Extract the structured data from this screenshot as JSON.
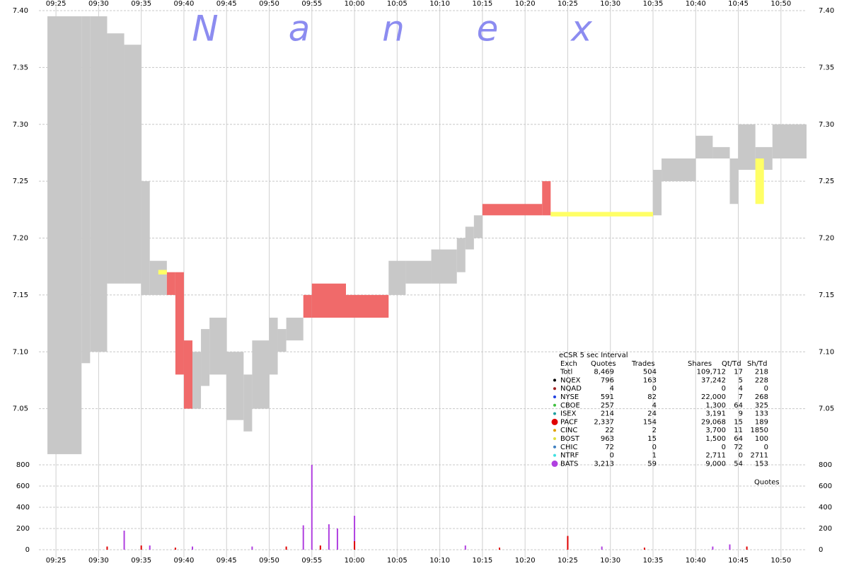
{
  "watermark": [
    "N",
    "a",
    "n",
    "e",
    "x"
  ],
  "chart_data": [
    {
      "type": "range",
      "xlim": [
        "09:23",
        "10:53"
      ],
      "xticks": [
        "09:25",
        "09:30",
        "09:35",
        "09:40",
        "09:45",
        "09:50",
        "09:55",
        "10:00",
        "10:05",
        "10:10",
        "10:15",
        "10:20",
        "10:25",
        "10:30",
        "10:35",
        "10:40",
        "10:45",
        "10:50"
      ],
      "ylim": [
        7.0,
        7.4
      ],
      "yticks": [
        {
          "value": 7.05,
          "label": "7.05"
        },
        {
          "value": 7.1,
          "label": "7.10"
        },
        {
          "value": 7.15,
          "label": "7.15"
        },
        {
          "value": 7.2,
          "label": "7.20"
        },
        {
          "value": 7.25,
          "label": "7.25"
        },
        {
          "value": 7.3,
          "label": "7.30"
        },
        {
          "value": 7.35,
          "label": "7.35"
        },
        {
          "value": 7.4,
          "label": "7.40"
        }
      ],
      "grid": true,
      "series": [
        {
          "color": "#c8c8c8",
          "start": [
            "09:24",
            "09:28",
            "09:29",
            "09:31",
            "09:33",
            "09:35",
            "09:36",
            "09:41",
            "09:42",
            "09:43",
            "09:45",
            "09:47",
            "09:48",
            "09:50",
            "09:51",
            "09:52",
            "10:04",
            "10:06",
            "10:09",
            "10:12",
            "10:13",
            "10:14",
            "10:35",
            "10:36",
            "10:40",
            "10:42",
            "10:44",
            "10:45",
            "10:47",
            "10:49"
          ],
          "end": [
            "09:28",
            "09:29",
            "09:31",
            "09:33",
            "09:35",
            "09:36",
            "09:38",
            "09:42",
            "09:43",
            "09:45",
            "09:47",
            "09:48",
            "09:50",
            "09:51",
            "09:52",
            "09:54",
            "10:06",
            "10:09",
            "10:12",
            "10:13",
            "10:14",
            "10:15",
            "10:36",
            "10:40",
            "10:42",
            "10:44",
            "10:45",
            "10:47",
            "10:49",
            "10:53"
          ],
          "low": [
            7.01,
            7.09,
            7.1,
            7.16,
            7.16,
            7.15,
            7.15,
            7.05,
            7.07,
            7.08,
            7.04,
            7.03,
            7.05,
            7.08,
            7.1,
            7.11,
            7.15,
            7.16,
            7.16,
            7.17,
            7.19,
            7.2,
            7.22,
            7.25,
            7.27,
            7.27,
            7.23,
            7.26,
            7.26,
            7.27
          ],
          "high": [
            7.395,
            7.395,
            7.395,
            7.38,
            7.37,
            7.25,
            7.18,
            7.1,
            7.12,
            7.13,
            7.1,
            7.08,
            7.11,
            7.13,
            7.12,
            7.13,
            7.18,
            7.18,
            7.19,
            7.2,
            7.21,
            7.22,
            7.26,
            7.27,
            7.29,
            7.28,
            7.27,
            7.3,
            7.28,
            7.3
          ]
        },
        {
          "color": "#f06a6a",
          "start": [
            "09:38",
            "09:39",
            "09:40",
            "09:54",
            "09:55",
            "09:59",
            "10:15",
            "10:22"
          ],
          "end": [
            "09:39",
            "09:40",
            "09:41",
            "09:55",
            "09:59",
            "10:04",
            "10:22",
            "10:23"
          ],
          "low": [
            7.15,
            7.08,
            7.05,
            7.13,
            7.13,
            7.13,
            7.22,
            7.22
          ],
          "high": [
            7.17,
            7.17,
            7.11,
            7.15,
            7.16,
            7.15,
            7.23,
            7.25
          ]
        },
        {
          "color": "#ffff66",
          "start": [
            "09:37",
            "10:23",
            "10:47"
          ],
          "end": [
            "09:38",
            "10:35",
            "10:48"
          ],
          "low": [
            7.168,
            7.219,
            7.23
          ],
          "high": [
            7.172,
            7.223,
            7.27
          ]
        }
      ],
      "table": {
        "title": "eCSR 5 sec Interval",
        "columns": [
          "Exch",
          "Quotes",
          "Trades",
          "Shares",
          "Qt/Td",
          "Sh/Td"
        ],
        "rows": [
          {
            "color": null,
            "cells": [
              "Totl",
              "8,469",
              "504",
              "109,712",
              "17",
              "218"
            ]
          },
          {
            "color": "#000000",
            "cells": [
              "NQEX",
              "796",
              "163",
              "37,242",
              "5",
              "228"
            ]
          },
          {
            "color": "#a02020",
            "cells": [
              "NQAD",
              "4",
              "0",
              "0",
              "4",
              "0"
            ]
          },
          {
            "color": "#2040e0",
            "cells": [
              "NYSE",
              "591",
              "82",
              "22,000",
              "7",
              "268"
            ]
          },
          {
            "color": "#40c040",
            "cells": [
              "CBOE",
              "257",
              "4",
              "1,300",
              "64",
              "325"
            ]
          },
          {
            "color": "#20a0a0",
            "cells": [
              "ISEX",
              "214",
              "24",
              "3,191",
              "9",
              "133"
            ]
          },
          {
            "color": "#e00000",
            "cells": [
              "PACF",
              "2,337",
              "154",
              "29,068",
              "15",
              "189"
            ]
          },
          {
            "color": "#e0a000",
            "cells": [
              "CINC",
              "22",
              "2",
              "3,700",
              "11",
              "1850"
            ]
          },
          {
            "color": "#e0e040",
            "cells": [
              "BOST",
              "963",
              "15",
              "1,500",
              "64",
              "100"
            ]
          },
          {
            "color": "#4080c0",
            "cells": [
              "CHIC",
              "72",
              "0",
              "0",
              "72",
              "0"
            ]
          },
          {
            "color": "#40e0e0",
            "cells": [
              "NTRF",
              "0",
              "1",
              "2,711",
              "0",
              "2711"
            ]
          },
          {
            "color": "#b040e0",
            "cells": [
              "BATS",
              "3,213",
              "59",
              "9,000",
              "54",
              "153"
            ]
          }
        ],
        "footer": "Quotes"
      }
    },
    {
      "type": "bar",
      "xlim": [
        "09:23",
        "10:53"
      ],
      "ylim": [
        0,
        800
      ],
      "yticks": [
        0,
        200,
        400,
        600,
        800
      ],
      "grid": true,
      "series": [
        {
          "color": "#b040e0",
          "x": [
            "09:33",
            "09:36",
            "09:41",
            "09:48",
            "09:54",
            "09:55",
            "09:57",
            "09:58",
            "10:00",
            "10:13",
            "10:29",
            "10:42",
            "10:44"
          ],
          "values": [
            180,
            40,
            30,
            30,
            230,
            800,
            240,
            200,
            320,
            40,
            30,
            30,
            50
          ]
        },
        {
          "color": "#e00000",
          "x": [
            "09:31",
            "09:35",
            "09:39",
            "09:52",
            "09:56",
            "10:00",
            "10:17",
            "10:25",
            "10:34",
            "10:46"
          ],
          "values": [
            30,
            40,
            20,
            30,
            40,
            80,
            20,
            130,
            20,
            30
          ]
        }
      ]
    }
  ]
}
